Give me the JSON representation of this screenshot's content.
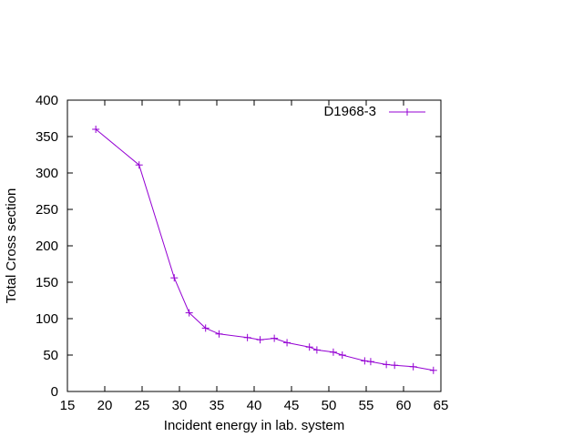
{
  "chart_data": {
    "type": "line",
    "title": "",
    "xlabel": "Incident energy in lab. system",
    "ylabel": "Total Cross section",
    "xlim": [
      15,
      65
    ],
    "ylim": [
      0,
      400
    ],
    "xticks": [
      15,
      20,
      25,
      30,
      35,
      40,
      45,
      50,
      55,
      60,
      65
    ],
    "yticks": [
      0,
      50,
      100,
      150,
      200,
      250,
      300,
      350,
      400
    ],
    "grid": false,
    "legend": "top-right",
    "series": [
      {
        "name": "D1968-3",
        "color": "#9400d3",
        "marker": "plus",
        "x": [
          18.8,
          24.6,
          29.3,
          31.3,
          33.5,
          35.3,
          39.1,
          40.8,
          42.7,
          44.4,
          47.4,
          48.4,
          50.6,
          51.8,
          54.8,
          55.6,
          57.7,
          58.8,
          61.3,
          64.0
        ],
        "y": [
          360,
          311,
          156,
          108,
          87,
          79,
          74,
          71,
          73,
          67,
          61,
          57,
          54,
          50,
          42,
          41,
          37,
          36,
          34,
          29
        ]
      }
    ]
  }
}
